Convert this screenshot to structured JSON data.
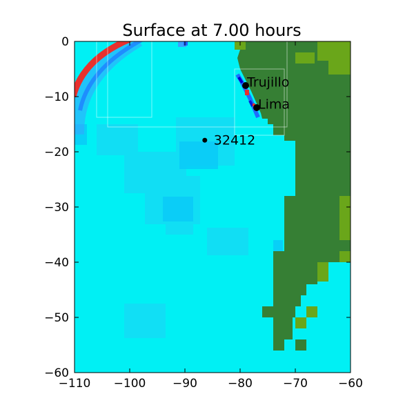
{
  "chart_data": {
    "type": "heatmap",
    "title": "Surface at 7.00 hours",
    "xlabel": "",
    "ylabel": "",
    "xlim": [
      -110,
      -60
    ],
    "ylim": [
      -60,
      0
    ],
    "x_ticks": [
      -110,
      -100,
      -90,
      -80,
      -70,
      -60
    ],
    "y_ticks": [
      0,
      -10,
      -20,
      -30,
      -40,
      -50,
      -60
    ],
    "x_tick_labels": [
      "−110",
      "−100",
      "−90",
      "−80",
      "−70",
      "−60"
    ],
    "y_tick_labels": [
      "0",
      "−10",
      "−20",
      "−30",
      "−40",
      "−50",
      "−60"
    ],
    "grid": false,
    "colors": {
      "ocean": "#00f0f4",
      "land": "#367f34",
      "land_high": "#6aa61a",
      "wave_crest": "#e8302e",
      "wave_trough": "#1e88ff"
    },
    "locations": [
      {
        "name": "Trujillo",
        "lon": -79.0,
        "lat": -8.0
      },
      {
        "name": "Lima",
        "lon": -77.0,
        "lat": -12.0
      },
      {
        "name": "32412",
        "lon": -86.4,
        "lat": -17.9
      }
    ]
  }
}
